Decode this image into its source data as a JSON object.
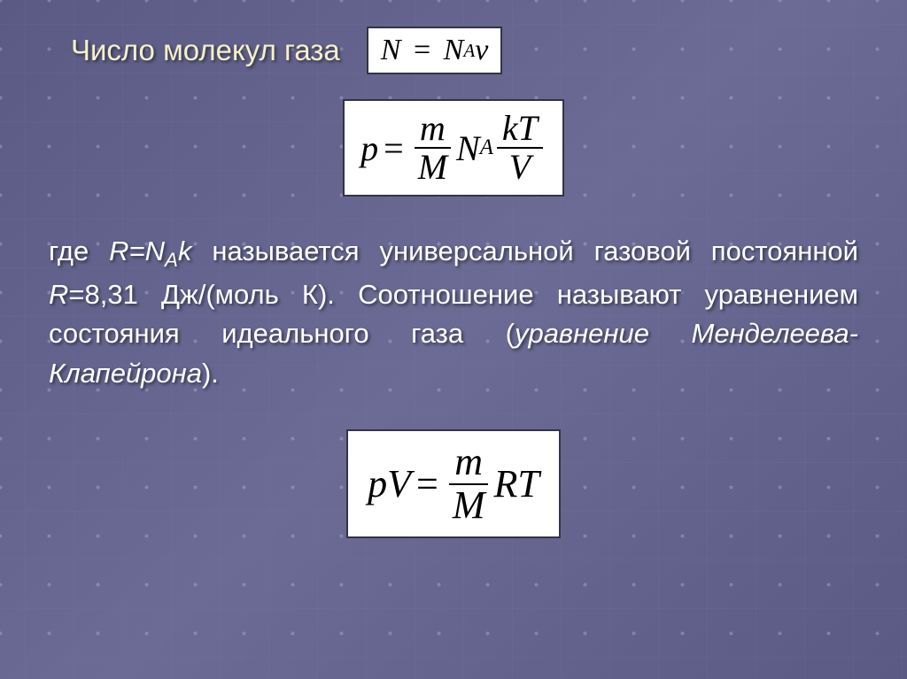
{
  "slide": {
    "title": "Число молекул газа",
    "formula1": {
      "lhs": "N",
      "rhs_var": "N",
      "rhs_sub": "A",
      "rhs_tail": "ν"
    },
    "formula2": {
      "lhs": "p",
      "frac1_num": "m",
      "frac1_den": "M",
      "mid_var": "N",
      "mid_sub": "A",
      "frac2_num": "kT",
      "frac2_den": "V"
    },
    "paragraph": {
      "p1": "где ",
      "r1": "R=N",
      "sub1": "A",
      "r1b": "k",
      "p2": " называется универсальной газовой постоянной ",
      "r2": "R",
      "p3": "=8,31 Дж/(моль К). Соотношение называют уравнением состояния идеального газа (",
      "em": "уравнение Менделеева-Клапейрона",
      "p4": ")."
    },
    "formula3": {
      "lhs": "pV",
      "frac_num": "m",
      "frac_den": "M",
      "tail": "RT"
    }
  },
  "style": {
    "title_color": "#f5f0c8",
    "text_color": "#ffffff",
    "formula_bg": "#ffffff",
    "formula_border": "#333344",
    "background": "#5f5f8a",
    "title_fontsize": 33,
    "body_fontsize": 31,
    "formula1_fontsize": 34,
    "formula2_fontsize": 40,
    "formula3_fontsize": 44
  }
}
